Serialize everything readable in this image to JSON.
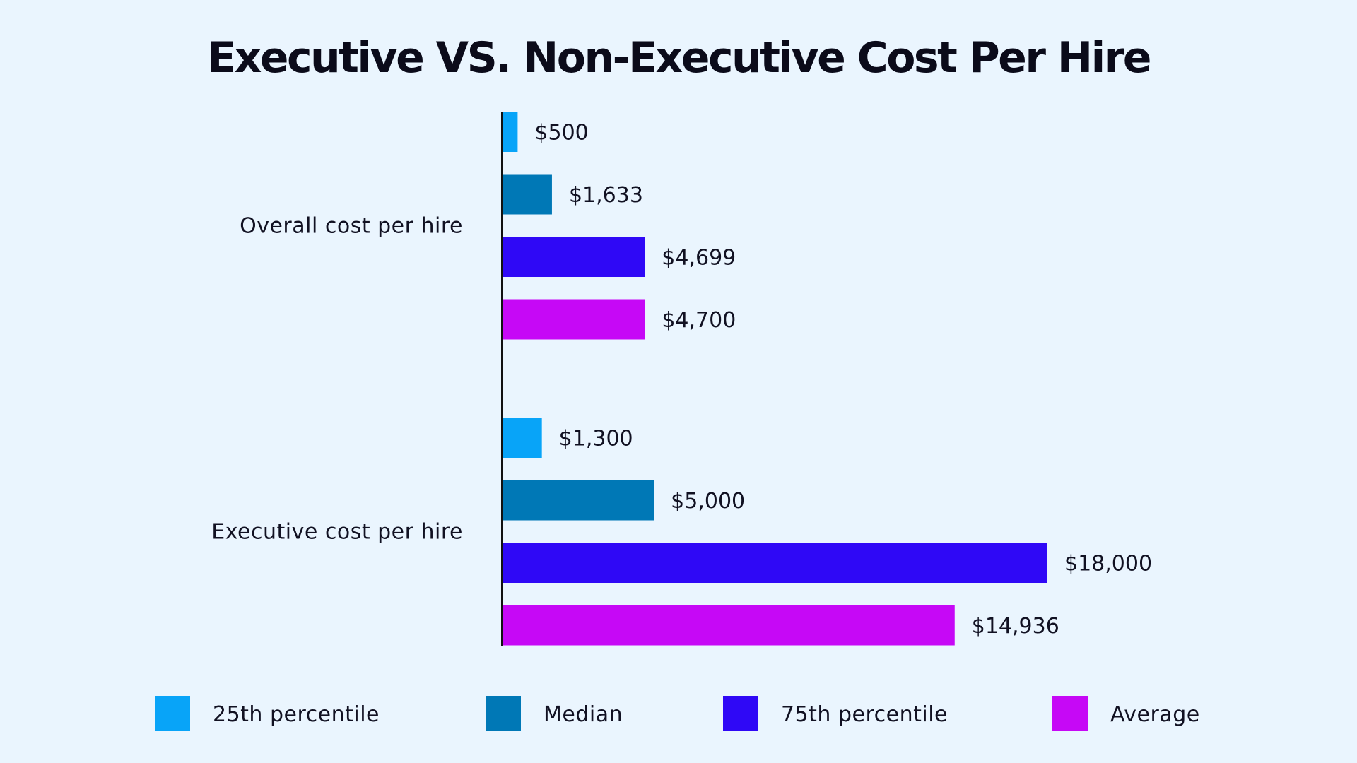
{
  "chart_data": {
    "type": "bar",
    "orientation": "horizontal",
    "title": "Executive VS. Non-Executive Cost Per Hire",
    "categories": [
      "Overall cost per hire",
      "Executive cost per hire"
    ],
    "series": [
      {
        "name": "25th percentile",
        "color": "#08a4f8",
        "values": [
          500,
          1300
        ],
        "labels": [
          "$500",
          "$1,300"
        ]
      },
      {
        "name": "Median",
        "color": "#0078b6",
        "values": [
          1633,
          5000
        ],
        "labels": [
          "$1,633",
          "$5,000"
        ]
      },
      {
        "name": "75th percentile",
        "color": "#2f08f6",
        "values": [
          4699,
          18000
        ],
        "labels": [
          "$4,699",
          "$18,000"
        ]
      },
      {
        "name": "Average",
        "color": "#c608f6",
        "values": [
          4700,
          14936
        ],
        "labels": [
          "$4,700",
          "$14,936"
        ]
      }
    ],
    "xlim": [
      0,
      18000
    ],
    "grid": false,
    "legend_position": "bottom"
  },
  "colors": {
    "background": "#eaf5fe",
    "axis": "#111111",
    "text": "#111122"
  }
}
